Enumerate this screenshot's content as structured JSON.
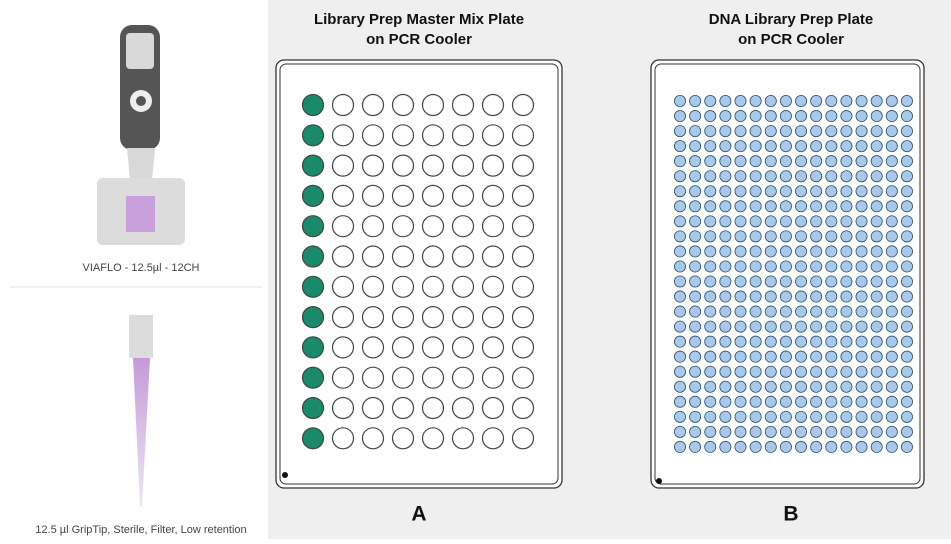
{
  "left": {
    "pipette_label": "VIAFLO - 12.5µl - 12CH",
    "tip_label": "12.5 µl GripTip, Sterile, Filter, Low retention"
  },
  "plates": [
    {
      "title_lines": [
        "Library Prep Master Mix Plate",
        "on PCR Cooler"
      ],
      "label": "A"
    },
    {
      "title_lines": [
        "DNA Library Prep Plate",
        "on PCR Cooler"
      ],
      "label": "B"
    }
  ]
}
